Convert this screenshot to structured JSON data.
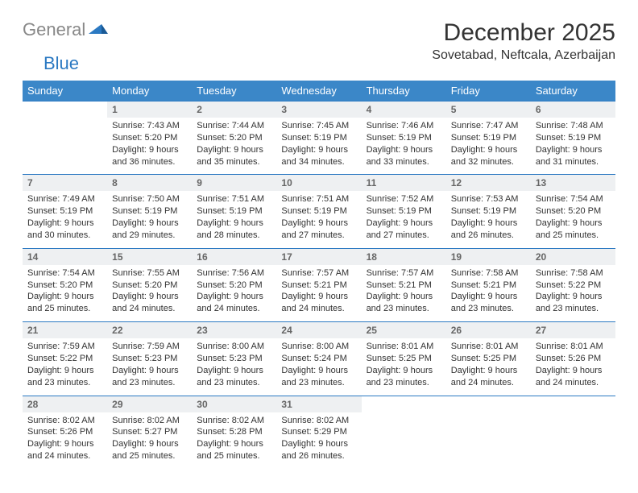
{
  "brand": {
    "word1": "General",
    "word2": "Blue"
  },
  "title": "December 2025",
  "location": "Sovetabad, Neftcala, Azerbaijan",
  "styling": {
    "header_bg": "#3b87c8",
    "header_fg": "#ffffff",
    "daynum_bg": "#eef0f2",
    "daynum_fg": "#666666",
    "row_divider": "#2b79c2",
    "body_text": "#333333",
    "logo_gray": "#888888",
    "logo_blue": "#2b79c2",
    "month_title_fontsize": 30,
    "location_fontsize": 16,
    "header_fontsize": 13,
    "daynum_fontsize": 12,
    "cell_fontsize": 11
  },
  "weekdays": [
    "Sunday",
    "Monday",
    "Tuesday",
    "Wednesday",
    "Thursday",
    "Friday",
    "Saturday"
  ],
  "weeks": [
    [
      null,
      {
        "d": "1",
        "sr": "7:43 AM",
        "ss": "5:20 PM",
        "dl": "9 hours and 36 minutes."
      },
      {
        "d": "2",
        "sr": "7:44 AM",
        "ss": "5:20 PM",
        "dl": "9 hours and 35 minutes."
      },
      {
        "d": "3",
        "sr": "7:45 AM",
        "ss": "5:19 PM",
        "dl": "9 hours and 34 minutes."
      },
      {
        "d": "4",
        "sr": "7:46 AM",
        "ss": "5:19 PM",
        "dl": "9 hours and 33 minutes."
      },
      {
        "d": "5",
        "sr": "7:47 AM",
        "ss": "5:19 PM",
        "dl": "9 hours and 32 minutes."
      },
      {
        "d": "6",
        "sr": "7:48 AM",
        "ss": "5:19 PM",
        "dl": "9 hours and 31 minutes."
      }
    ],
    [
      {
        "d": "7",
        "sr": "7:49 AM",
        "ss": "5:19 PM",
        "dl": "9 hours and 30 minutes."
      },
      {
        "d": "8",
        "sr": "7:50 AM",
        "ss": "5:19 PM",
        "dl": "9 hours and 29 minutes."
      },
      {
        "d": "9",
        "sr": "7:51 AM",
        "ss": "5:19 PM",
        "dl": "9 hours and 28 minutes."
      },
      {
        "d": "10",
        "sr": "7:51 AM",
        "ss": "5:19 PM",
        "dl": "9 hours and 27 minutes."
      },
      {
        "d": "11",
        "sr": "7:52 AM",
        "ss": "5:19 PM",
        "dl": "9 hours and 27 minutes."
      },
      {
        "d": "12",
        "sr": "7:53 AM",
        "ss": "5:19 PM",
        "dl": "9 hours and 26 minutes."
      },
      {
        "d": "13",
        "sr": "7:54 AM",
        "ss": "5:20 PM",
        "dl": "9 hours and 25 minutes."
      }
    ],
    [
      {
        "d": "14",
        "sr": "7:54 AM",
        "ss": "5:20 PM",
        "dl": "9 hours and 25 minutes."
      },
      {
        "d": "15",
        "sr": "7:55 AM",
        "ss": "5:20 PM",
        "dl": "9 hours and 24 minutes."
      },
      {
        "d": "16",
        "sr": "7:56 AM",
        "ss": "5:20 PM",
        "dl": "9 hours and 24 minutes."
      },
      {
        "d": "17",
        "sr": "7:57 AM",
        "ss": "5:21 PM",
        "dl": "9 hours and 24 minutes."
      },
      {
        "d": "18",
        "sr": "7:57 AM",
        "ss": "5:21 PM",
        "dl": "9 hours and 23 minutes."
      },
      {
        "d": "19",
        "sr": "7:58 AM",
        "ss": "5:21 PM",
        "dl": "9 hours and 23 minutes."
      },
      {
        "d": "20",
        "sr": "7:58 AM",
        "ss": "5:22 PM",
        "dl": "9 hours and 23 minutes."
      }
    ],
    [
      {
        "d": "21",
        "sr": "7:59 AM",
        "ss": "5:22 PM",
        "dl": "9 hours and 23 minutes."
      },
      {
        "d": "22",
        "sr": "7:59 AM",
        "ss": "5:23 PM",
        "dl": "9 hours and 23 minutes."
      },
      {
        "d": "23",
        "sr": "8:00 AM",
        "ss": "5:23 PM",
        "dl": "9 hours and 23 minutes."
      },
      {
        "d": "24",
        "sr": "8:00 AM",
        "ss": "5:24 PM",
        "dl": "9 hours and 23 minutes."
      },
      {
        "d": "25",
        "sr": "8:01 AM",
        "ss": "5:25 PM",
        "dl": "9 hours and 23 minutes."
      },
      {
        "d": "26",
        "sr": "8:01 AM",
        "ss": "5:25 PM",
        "dl": "9 hours and 24 minutes."
      },
      {
        "d": "27",
        "sr": "8:01 AM",
        "ss": "5:26 PM",
        "dl": "9 hours and 24 minutes."
      }
    ],
    [
      {
        "d": "28",
        "sr": "8:02 AM",
        "ss": "5:26 PM",
        "dl": "9 hours and 24 minutes."
      },
      {
        "d": "29",
        "sr": "8:02 AM",
        "ss": "5:27 PM",
        "dl": "9 hours and 25 minutes."
      },
      {
        "d": "30",
        "sr": "8:02 AM",
        "ss": "5:28 PM",
        "dl": "9 hours and 25 minutes."
      },
      {
        "d": "31",
        "sr": "8:02 AM",
        "ss": "5:29 PM",
        "dl": "9 hours and 26 minutes."
      },
      null,
      null,
      null
    ]
  ],
  "labels": {
    "sunrise": "Sunrise:",
    "sunset": "Sunset:",
    "daylight": "Daylight:"
  }
}
